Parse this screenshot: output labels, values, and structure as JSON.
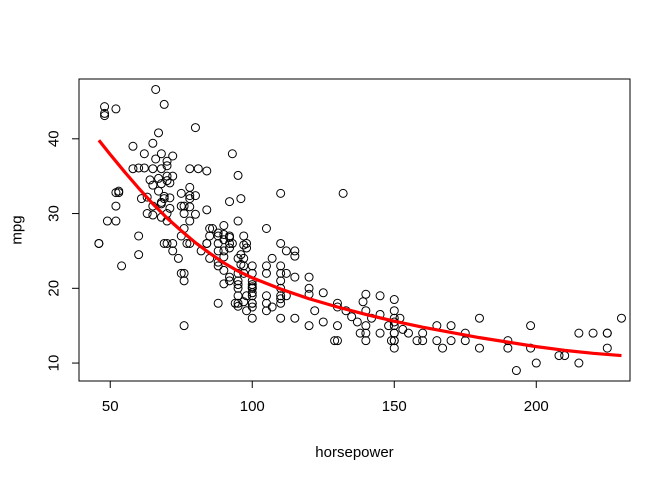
{
  "chart_data": {
    "type": "scatter",
    "title": "",
    "xlabel": "horsepower",
    "ylabel": "mpg",
    "xlim": [
      39,
      233
    ],
    "ylim": [
      7.6,
      48
    ],
    "x_ticks": [
      50,
      100,
      150,
      200
    ],
    "y_ticks": [
      10,
      20,
      30,
      40
    ],
    "grid": false,
    "legend": "none",
    "point_color": "#000000",
    "fit_color": "#ff0000",
    "series": [
      {
        "kind": "points",
        "marker": "open-circle",
        "points": [
          [
            46,
            26
          ],
          [
            46,
            26
          ],
          [
            48,
            43.1
          ],
          [
            48,
            43.4
          ],
          [
            48,
            44.3
          ],
          [
            49,
            29
          ],
          [
            52,
            44
          ],
          [
            52,
            29
          ],
          [
            52,
            32.8
          ],
          [
            52,
            31
          ],
          [
            53,
            33
          ],
          [
            53,
            32.8
          ],
          [
            54,
            23
          ],
          [
            58,
            36
          ],
          [
            58,
            39
          ],
          [
            60,
            36.1
          ],
          [
            60,
            27
          ],
          [
            60,
            24.5
          ],
          [
            61,
            32
          ],
          [
            62,
            38
          ],
          [
            62,
            36.1
          ],
          [
            63,
            32.2
          ],
          [
            63,
            30
          ],
          [
            64,
            34.5
          ],
          [
            65,
            33.8
          ],
          [
            65,
            29.8
          ],
          [
            65,
            36
          ],
          [
            65,
            31
          ],
          [
            65,
            39.4
          ],
          [
            66,
            46.6
          ],
          [
            66,
            37.3
          ],
          [
            67,
            40.8
          ],
          [
            67,
            33
          ],
          [
            67,
            34.7
          ],
          [
            68,
            36
          ],
          [
            68,
            31.3
          ],
          [
            68,
            29.5
          ],
          [
            68,
            31.5
          ],
          [
            68,
            38
          ],
          [
            68,
            34
          ],
          [
            69,
            26
          ],
          [
            69,
            32
          ],
          [
            69,
            32.3
          ],
          [
            69,
            44.6
          ],
          [
            70,
            37
          ],
          [
            70,
            30
          ],
          [
            70,
            26
          ],
          [
            70,
            36.4
          ],
          [
            70,
            35
          ],
          [
            70,
            29
          ],
          [
            70,
            34.4
          ],
          [
            71,
            32.1
          ],
          [
            71,
            34.1
          ],
          [
            71,
            30.7
          ],
          [
            72,
            35
          ],
          [
            72,
            26
          ],
          [
            72,
            25
          ],
          [
            72,
            37.7
          ],
          [
            74,
            24
          ],
          [
            75,
            31
          ],
          [
            75,
            27
          ],
          [
            75,
            32.7
          ],
          [
            75,
            22
          ],
          [
            76,
            31
          ],
          [
            76,
            30
          ],
          [
            76,
            28
          ],
          [
            76,
            22
          ],
          [
            76,
            21
          ],
          [
            76,
            15
          ],
          [
            77,
            26
          ],
          [
            78,
            32
          ],
          [
            78,
            36
          ],
          [
            78,
            33.5
          ],
          [
            78,
            26
          ],
          [
            78,
            32.4
          ],
          [
            78,
            30.9
          ],
          [
            78,
            29
          ],
          [
            80,
            32.4
          ],
          [
            80,
            29.9
          ],
          [
            80,
            41.5
          ],
          [
            81,
            36
          ],
          [
            82,
            25
          ],
          [
            84,
            35.7
          ],
          [
            84,
            26
          ],
          [
            84,
            26
          ],
          [
            84,
            30.5
          ],
          [
            85,
            28
          ],
          [
            85,
            24
          ],
          [
            85,
            27
          ],
          [
            86,
            28
          ],
          [
            88,
            26
          ],
          [
            88,
            25
          ],
          [
            88,
            18
          ],
          [
            88,
            23
          ],
          [
            88,
            27
          ],
          [
            88,
            23.5
          ],
          [
            88,
            27.4
          ],
          [
            90,
            28.4
          ],
          [
            90,
            26.5
          ],
          [
            90,
            25
          ],
          [
            90,
            22.4
          ],
          [
            90,
            20.6
          ],
          [
            90,
            24.2
          ],
          [
            90,
            27.2
          ],
          [
            92,
            31.6
          ],
          [
            92,
            26.8
          ],
          [
            92,
            21.5
          ],
          [
            92,
            21
          ],
          [
            92,
            27
          ],
          [
            92,
            26
          ],
          [
            92,
            25.4
          ],
          [
            93,
            26
          ],
          [
            93,
            38
          ],
          [
            94,
            18
          ],
          [
            95,
            19
          ],
          [
            95,
            20
          ],
          [
            95,
            17.6
          ],
          [
            95,
            22
          ],
          [
            95,
            21
          ],
          [
            95,
            20.5
          ],
          [
            95,
            24
          ],
          [
            95,
            29
          ],
          [
            95,
            18
          ],
          [
            95,
            35.1
          ],
          [
            96,
            32
          ],
          [
            96,
            24.5
          ],
          [
            96,
            23.2
          ],
          [
            97,
            27
          ],
          [
            97,
            18.2
          ],
          [
            97,
            25.8
          ],
          [
            97,
            23
          ],
          [
            97,
            24
          ],
          [
            97,
            22
          ],
          [
            98,
            26
          ],
          [
            98,
            19
          ],
          [
            98,
            17
          ],
          [
            98,
            25.4
          ],
          [
            100,
            18
          ],
          [
            100,
            22
          ],
          [
            100,
            16
          ],
          [
            100,
            20
          ],
          [
            100,
            20
          ],
          [
            100,
            18
          ],
          [
            100,
            19.4
          ],
          [
            100,
            23
          ],
          [
            100,
            19
          ],
          [
            100,
            20.5
          ],
          [
            100,
            17.5
          ],
          [
            100,
            21
          ],
          [
            100,
            20.2
          ],
          [
            105,
            22
          ],
          [
            105,
            23
          ],
          [
            105,
            18
          ],
          [
            105,
            19
          ],
          [
            105,
            28
          ],
          [
            105,
            17
          ],
          [
            107,
            17.5
          ],
          [
            107,
            24
          ],
          [
            110,
            18
          ],
          [
            110,
            19
          ],
          [
            110,
            20
          ],
          [
            110,
            16
          ],
          [
            110,
            18.6
          ],
          [
            110,
            22
          ],
          [
            110,
            23
          ],
          [
            110,
            21
          ],
          [
            110,
            26
          ],
          [
            110,
            32.7
          ],
          [
            112,
            25
          ],
          [
            112,
            19
          ],
          [
            112,
            22
          ],
          [
            115,
            16
          ],
          [
            115,
            25
          ],
          [
            115,
            24.3
          ],
          [
            115,
            21.5
          ],
          [
            120,
            20
          ],
          [
            120,
            15
          ],
          [
            120,
            19.2
          ],
          [
            120,
            21.5
          ],
          [
            122,
            17
          ],
          [
            125,
            15.5
          ],
          [
            125,
            19.4
          ],
          [
            129,
            13
          ],
          [
            130,
            18
          ],
          [
            130,
            15
          ],
          [
            130,
            13
          ],
          [
            130,
            17.5
          ],
          [
            132,
            32.7
          ],
          [
            133,
            17
          ],
          [
            135,
            16.2
          ],
          [
            137,
            15.5
          ],
          [
            138,
            14
          ],
          [
            139,
            18.2
          ],
          [
            140,
            13
          ],
          [
            140,
            15
          ],
          [
            140,
            14
          ],
          [
            140,
            17
          ],
          [
            140,
            19.2
          ],
          [
            142,
            16
          ],
          [
            145,
            16.5
          ],
          [
            145,
            19
          ],
          [
            145,
            14
          ],
          [
            148,
            15
          ],
          [
            149,
            13
          ],
          [
            150,
            14
          ],
          [
            150,
            15
          ],
          [
            150,
            17
          ],
          [
            150,
            13
          ],
          [
            150,
            14
          ],
          [
            150,
            18.5
          ],
          [
            150,
            15.5
          ],
          [
            150,
            16
          ],
          [
            150,
            12
          ],
          [
            150,
            13
          ],
          [
            152,
            16
          ],
          [
            153,
            14.5
          ],
          [
            155,
            14
          ],
          [
            158,
            13
          ],
          [
            160,
            13
          ],
          [
            160,
            14
          ],
          [
            165,
            13
          ],
          [
            165,
            15
          ],
          [
            167,
            12
          ],
          [
            170,
            13
          ],
          [
            170,
            15
          ],
          [
            175,
            14
          ],
          [
            175,
            13
          ],
          [
            180,
            12
          ],
          [
            180,
            16
          ],
          [
            190,
            12
          ],
          [
            190,
            13
          ],
          [
            193,
            9
          ],
          [
            198,
            15
          ],
          [
            198,
            12
          ],
          [
            200,
            10
          ],
          [
            208,
            11
          ],
          [
            210,
            11
          ],
          [
            215,
            10
          ],
          [
            215,
            14
          ],
          [
            220,
            14
          ],
          [
            225,
            14
          ],
          [
            225,
            12
          ],
          [
            225,
            14
          ],
          [
            230,
            16
          ]
        ]
      },
      {
        "kind": "fit",
        "style": "thick-line",
        "points": [
          [
            46,
            39.8
          ],
          [
            50,
            37.9
          ],
          [
            55,
            35.6
          ],
          [
            60,
            33.4
          ],
          [
            65,
            31.3
          ],
          [
            70,
            29.4
          ],
          [
            75,
            27.7
          ],
          [
            80,
            26.1
          ],
          [
            85,
            24.7
          ],
          [
            90,
            23.4
          ],
          [
            95,
            22.3
          ],
          [
            100,
            21.4
          ],
          [
            110,
            19.9
          ],
          [
            120,
            18.6
          ],
          [
            130,
            17.5
          ],
          [
            140,
            16.5
          ],
          [
            150,
            15.6
          ],
          [
            160,
            14.8
          ],
          [
            170,
            14.1
          ],
          [
            180,
            13.4
          ],
          [
            190,
            12.8
          ],
          [
            200,
            12.2
          ],
          [
            210,
            11.7
          ],
          [
            220,
            11.3
          ],
          [
            230,
            11.0
          ]
        ]
      }
    ]
  }
}
